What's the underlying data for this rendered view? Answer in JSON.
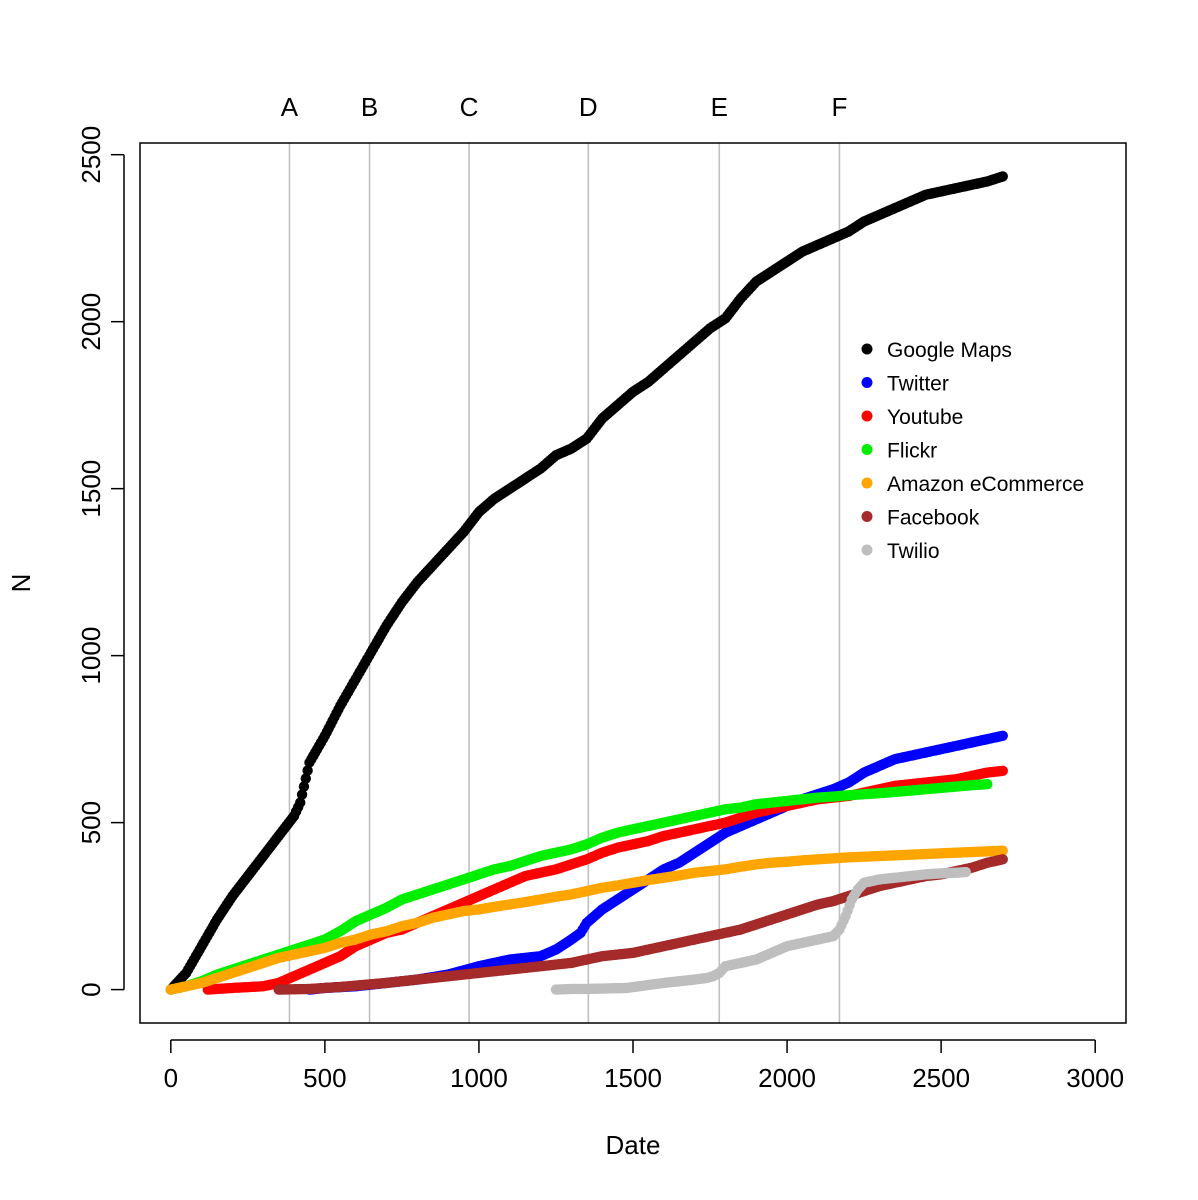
{
  "chart_data": {
    "type": "scatter",
    "title": "",
    "xlabel": "Date",
    "ylabel": "N",
    "xlim": [
      -100,
      3100
    ],
    "ylim": [
      -100,
      2535
    ],
    "x_ticks": [
      0,
      500,
      1000,
      1500,
      2000,
      2500,
      3000
    ],
    "y_ticks": [
      0,
      500,
      1000,
      1500,
      2000,
      2500
    ],
    "x_tick_labels": [
      "0",
      "500",
      "1000",
      "1500",
      "2000",
      "2500",
      "3000"
    ],
    "y_tick_labels": [
      "0",
      "500",
      "1000",
      "1500",
      "2000",
      "2500"
    ],
    "legend_position": "right",
    "grid": false,
    "vertical_lines": [
      {
        "label": "A",
        "x": 385
      },
      {
        "label": "B",
        "x": 645
      },
      {
        "label": "C",
        "x": 968
      },
      {
        "label": "D",
        "x": 1355
      },
      {
        "label": "E",
        "x": 1780
      },
      {
        "label": "F",
        "x": 2170
      }
    ],
    "vertical_line_color": "#c0c0c0",
    "series": [
      {
        "name": "Google Maps",
        "color": "#000000",
        "x": [
          0,
          50,
          100,
          150,
          200,
          250,
          300,
          350,
          400,
          420,
          450,
          500,
          550,
          600,
          650,
          700,
          750,
          800,
          850,
          900,
          950,
          1000,
          1050,
          1100,
          1150,
          1200,
          1250,
          1300,
          1350,
          1400,
          1450,
          1500,
          1550,
          1600,
          1650,
          1700,
          1750,
          1800,
          1850,
          1900,
          1950,
          2000,
          2050,
          2100,
          2150,
          2200,
          2250,
          2300,
          2350,
          2400,
          2450,
          2500,
          2550,
          2600,
          2650,
          2700
        ],
        "y": [
          0,
          50,
          130,
          210,
          280,
          340,
          400,
          460,
          520,
          560,
          680,
          760,
          850,
          930,
          1010,
          1090,
          1160,
          1220,
          1270,
          1320,
          1370,
          1430,
          1470,
          1500,
          1530,
          1560,
          1600,
          1620,
          1650,
          1710,
          1750,
          1790,
          1820,
          1860,
          1900,
          1940,
          1980,
          2010,
          2070,
          2120,
          2150,
          2180,
          2210,
          2230,
          2250,
          2270,
          2300,
          2320,
          2340,
          2360,
          2380,
          2390,
          2400,
          2410,
          2420,
          2435
        ]
      },
      {
        "name": "Twitter",
        "color": "#0000ff",
        "x": [
          450,
          500,
          600,
          700,
          800,
          900,
          1000,
          1100,
          1200,
          1250,
          1300,
          1330,
          1350,
          1400,
          1450,
          1500,
          1550,
          1600,
          1650,
          1700,
          1750,
          1800,
          1850,
          1900,
          1950,
          2000,
          2050,
          2100,
          2150,
          2200,
          2250,
          2300,
          2350,
          2400,
          2450,
          2500,
          2550,
          2600,
          2650,
          2700
        ],
        "y": [
          0,
          5,
          10,
          20,
          30,
          45,
          70,
          90,
          100,
          120,
          150,
          170,
          200,
          240,
          270,
          300,
          330,
          360,
          380,
          410,
          440,
          470,
          490,
          510,
          530,
          550,
          570,
          585,
          600,
          620,
          650,
          670,
          690,
          700,
          710,
          720,
          730,
          740,
          750,
          760
        ]
      },
      {
        "name": "Youtube",
        "color": "#ff0000",
        "x": [
          120,
          200,
          300,
          350,
          400,
          450,
          500,
          550,
          600,
          650,
          700,
          750,
          800,
          850,
          900,
          950,
          1000,
          1050,
          1100,
          1150,
          1200,
          1250,
          1300,
          1350,
          1400,
          1450,
          1500,
          1550,
          1600,
          1650,
          1700,
          1750,
          1800,
          1850,
          1900,
          1950,
          2000,
          2050,
          2100,
          2150,
          2200,
          2250,
          2300,
          2350,
          2400,
          2450,
          2500,
          2550,
          2600,
          2650,
          2700
        ],
        "y": [
          0,
          5,
          10,
          20,
          40,
          60,
          80,
          100,
          130,
          150,
          170,
          180,
          200,
          220,
          240,
          260,
          280,
          300,
          320,
          340,
          350,
          360,
          375,
          390,
          410,
          425,
          435,
          445,
          460,
          470,
          480,
          490,
          500,
          515,
          530,
          540,
          550,
          560,
          570,
          575,
          580,
          590,
          600,
          610,
          615,
          620,
          625,
          630,
          640,
          650,
          655
        ]
      },
      {
        "name": "Flickr",
        "color": "#00ee00",
        "x": [
          0,
          50,
          100,
          150,
          200,
          250,
          300,
          350,
          400,
          450,
          500,
          550,
          600,
          650,
          700,
          750,
          800,
          850,
          900,
          950,
          1000,
          1050,
          1100,
          1150,
          1200,
          1250,
          1300,
          1350,
          1400,
          1450,
          1500,
          1550,
          1600,
          1650,
          1700,
          1750,
          1800,
          1850,
          1900,
          1950,
          2000,
          2050,
          2100,
          2150,
          2200,
          2250,
          2300,
          2350,
          2400,
          2450,
          2500,
          2550,
          2600,
          2650
        ],
        "y": [
          0,
          10,
          25,
          45,
          60,
          75,
          90,
          105,
          120,
          135,
          150,
          175,
          205,
          225,
          245,
          270,
          285,
          300,
          315,
          330,
          345,
          360,
          370,
          385,
          400,
          410,
          420,
          435,
          455,
          470,
          480,
          490,
          500,
          510,
          520,
          530,
          540,
          545,
          555,
          560,
          565,
          570,
          575,
          578,
          582,
          585,
          588,
          592,
          596,
          600,
          604,
          608,
          612,
          615
        ]
      },
      {
        "name": "Amazon eCommerce",
        "color": "#ffa500",
        "x": [
          0,
          50,
          100,
          150,
          200,
          250,
          300,
          350,
          400,
          450,
          500,
          550,
          600,
          650,
          700,
          750,
          800,
          850,
          900,
          950,
          1000,
          1050,
          1100,
          1150,
          1200,
          1250,
          1300,
          1350,
          1400,
          1450,
          1500,
          1550,
          1600,
          1650,
          1700,
          1750,
          1800,
          1850,
          1900,
          1950,
          2000,
          2050,
          2100,
          2150,
          2200,
          2250,
          2300,
          2350,
          2400,
          2450,
          2500,
          2550,
          2600,
          2650,
          2700
        ],
        "y": [
          0,
          10,
          20,
          35,
          50,
          65,
          80,
          95,
          105,
          115,
          125,
          140,
          150,
          165,
          175,
          190,
          200,
          215,
          225,
          235,
          240,
          248,
          255,
          262,
          270,
          278,
          285,
          295,
          305,
          312,
          320,
          328,
          335,
          342,
          350,
          355,
          360,
          368,
          375,
          380,
          383,
          387,
          390,
          393,
          396,
          398,
          400,
          402,
          404,
          406,
          408,
          410,
          412,
          414,
          416
        ]
      },
      {
        "name": "Facebook",
        "color": "#a52a2a",
        "x": [
          350,
          450,
          500,
          550,
          600,
          650,
          700,
          750,
          800,
          850,
          900,
          950,
          1000,
          1050,
          1100,
          1150,
          1200,
          1250,
          1300,
          1350,
          1400,
          1450,
          1500,
          1550,
          1600,
          1650,
          1700,
          1750,
          1800,
          1850,
          1900,
          1950,
          2000,
          2050,
          2100,
          2150,
          2200,
          2250,
          2300,
          2350,
          2400,
          2450,
          2500,
          2550,
          2600,
          2650,
          2700
        ],
        "y": [
          0,
          2,
          5,
          8,
          12,
          16,
          20,
          25,
          30,
          35,
          40,
          45,
          50,
          55,
          60,
          65,
          70,
          75,
          80,
          90,
          100,
          105,
          110,
          120,
          130,
          140,
          150,
          160,
          170,
          180,
          195,
          210,
          225,
          240,
          255,
          265,
          280,
          295,
          310,
          320,
          330,
          340,
          345,
          355,
          365,
          380,
          390
        ]
      },
      {
        "name": "Twilio",
        "color": "#bebebe",
        "x": [
          1250,
          1300,
          1350,
          1480,
          1520,
          1560,
          1600,
          1650,
          1700,
          1740,
          1760,
          1780,
          1800,
          1850,
          1900,
          1950,
          2000,
          2050,
          2100,
          2150,
          2170,
          2190,
          2210,
          2230,
          2250,
          2300,
          2350,
          2400,
          2450,
          2500,
          2550,
          2580
        ],
        "y": [
          0,
          2,
          2,
          5,
          10,
          15,
          20,
          25,
          30,
          35,
          40,
          50,
          70,
          80,
          90,
          110,
          130,
          140,
          150,
          160,
          180,
          220,
          270,
          300,
          320,
          330,
          335,
          340,
          345,
          348,
          350,
          352
        ]
      }
    ]
  }
}
